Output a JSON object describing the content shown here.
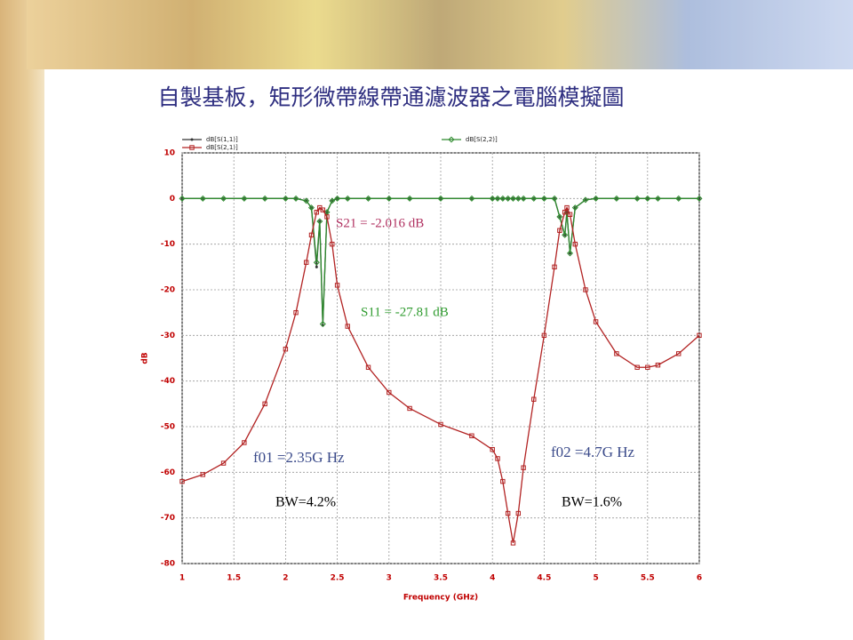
{
  "chart_data": {
    "type": "line",
    "title": "自製基板，矩形微帶線帶通濾波器之電腦模擬圖",
    "x_label": "Frequency (GHz)",
    "y_label": "dB",
    "x": [
      1.0,
      1.2,
      1.4,
      1.6,
      1.8,
      2.0,
      2.1,
      2.2,
      2.25,
      2.3,
      2.33,
      2.36,
      2.4,
      2.45,
      2.5,
      2.6,
      2.8,
      3.0,
      3.2,
      3.5,
      3.8,
      4.0,
      4.05,
      4.1,
      4.15,
      4.2,
      4.25,
      4.3,
      4.4,
      4.5,
      4.6,
      4.65,
      4.7,
      4.72,
      4.75,
      4.8,
      4.9,
      5.0,
      5.2,
      5.4,
      5.5,
      5.6,
      5.8,
      6.0
    ],
    "series": [
      {
        "name": "dB[S(1,1)]",
        "color": "#333333",
        "marker": "dot",
        "values": [
          0,
          0,
          0,
          0,
          0,
          0,
          0,
          -0.5,
          -2,
          -15,
          -5,
          -27.8,
          -3,
          -0.5,
          0,
          0,
          0,
          0,
          0,
          0,
          0,
          0,
          0,
          0,
          0,
          0,
          0,
          0,
          0,
          0,
          0,
          -4,
          -8,
          -3,
          -12,
          -2,
          -0.3,
          0,
          0,
          0,
          0,
          0,
          0,
          0
        ]
      },
      {
        "name": "dB[S(2,1)]",
        "color": "#b22222",
        "marker": "square",
        "values": [
          -62,
          -60.5,
          -58,
          -53.5,
          -45,
          -33,
          -25,
          -14,
          -8,
          -3,
          -2,
          -2.5,
          -4,
          -10,
          -19,
          -28,
          -37,
          -42.5,
          -46,
          -49.5,
          -52,
          -55,
          -57,
          -62,
          -69,
          -75.5,
          -69,
          -59,
          -44,
          -30,
          -15,
          -7,
          -3,
          -2,
          -3.5,
          -10,
          -20,
          -27,
          -34,
          -37,
          -37,
          -36.5,
          -34,
          -30
        ]
      },
      {
        "name": "dB[S(2,2)]",
        "color": "#2e8b2e",
        "marker": "diamond",
        "values": [
          0,
          0,
          0,
          0,
          0,
          0,
          0,
          -0.5,
          -2,
          -14,
          -5,
          -27.5,
          -3,
          -0.5,
          0,
          0,
          0,
          0,
          0,
          0,
          0,
          0,
          0,
          0,
          0,
          0,
          0,
          0,
          0,
          0,
          0,
          -4,
          -8,
          -3,
          -12,
          -2,
          -0.3,
          0,
          0,
          0,
          0,
          0,
          0,
          0
        ]
      }
    ],
    "xlim": [
      1,
      6
    ],
    "ylim": [
      -80,
      10
    ],
    "xticks": [
      1,
      1.5,
      2,
      2.5,
      3,
      3.5,
      4,
      4.5,
      5,
      5.5,
      6
    ],
    "yticks": [
      10,
      0,
      -10,
      -20,
      -30,
      -40,
      -50,
      -60,
      -70,
      -80
    ],
    "grid": true,
    "annotations": [
      {
        "text": "S21 = -2.016 dB",
        "color": "#b03060"
      },
      {
        "text": "S11 = -27.81 dB",
        "color": "#2e9b2e"
      },
      {
        "text": "f01 =2.35G Hz",
        "color": "#3a4a8a"
      },
      {
        "text": "f02 =4.7G Hz",
        "color": "#3a4a8a"
      },
      {
        "text": "BW=4.2%",
        "color": "#000000"
      },
      {
        "text": "BW=1.6%",
        "color": "#000000"
      }
    ]
  }
}
